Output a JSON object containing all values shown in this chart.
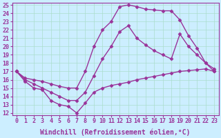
{
  "xlabel": "Windchill (Refroidissement éolien,°C)",
  "bg_color": "#cceeff",
  "line_color": "#993399",
  "xlim": [
    0,
    23
  ],
  "ylim": [
    12,
    25
  ],
  "xticks": [
    0,
    1,
    2,
    3,
    4,
    5,
    6,
    7,
    8,
    9,
    10,
    11,
    12,
    13,
    14,
    15,
    16,
    17,
    18,
    19,
    20,
    21,
    22,
    23
  ],
  "yticks": [
    12,
    13,
    14,
    15,
    16,
    17,
    18,
    19,
    20,
    21,
    22,
    23,
    24,
    25
  ],
  "line1_x": [
    0,
    1,
    2,
    3,
    4,
    5,
    6,
    7,
    8,
    9,
    10,
    11,
    12,
    13,
    14,
    15,
    16,
    17,
    18,
    19,
    20,
    21,
    22,
    23
  ],
  "line1_y": [
    17,
    15.8,
    15.0,
    14.8,
    13.5,
    13.0,
    12.8,
    12.0,
    13.2,
    14.5,
    15.0,
    15.3,
    15.5,
    15.7,
    16.0,
    16.2,
    16.4,
    16.6,
    16.8,
    17.0,
    17.1,
    17.2,
    17.3,
    17.0
  ],
  "line2_x": [
    0,
    1,
    2,
    3,
    4,
    5,
    6,
    7,
    8,
    9,
    10,
    11,
    12,
    13,
    14,
    15,
    16,
    17,
    18,
    19,
    20,
    21,
    22,
    23
  ],
  "line2_y": [
    17,
    16.2,
    16.0,
    15.8,
    15.5,
    15.2,
    15.0,
    15.0,
    17.0,
    20.0,
    22.0,
    23.0,
    24.8,
    25.0,
    24.8,
    24.5,
    24.4,
    24.3,
    24.3,
    23.2,
    21.3,
    19.8,
    18.0,
    17.3
  ],
  "line3_x": [
    0,
    1,
    2,
    3,
    4,
    5,
    6,
    7,
    8,
    9,
    10,
    11,
    12,
    13,
    14,
    15,
    16,
    17,
    18,
    19,
    20,
    21,
    22,
    23
  ],
  "line3_y": [
    17,
    16.0,
    15.5,
    15.0,
    14.5,
    14.0,
    13.5,
    13.5,
    14.5,
    16.5,
    18.5,
    20.0,
    21.8,
    22.5,
    21.0,
    20.2,
    19.5,
    19.0,
    18.5,
    21.5,
    20.0,
    19.0,
    18.0,
    17.0
  ],
  "marker": "D",
  "markersize": 2.5,
  "linewidth": 1.0,
  "xlabel_fontsize": 7,
  "tick_fontsize": 6,
  "grid_color": "#aaddcc"
}
